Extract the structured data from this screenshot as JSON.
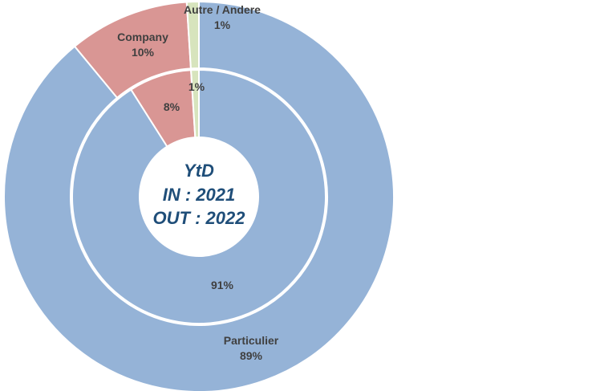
{
  "chart_data": {
    "type": "donut",
    "center_text": [
      "YtD",
      "IN : 2021",
      "OUT : 2022"
    ],
    "categories": [
      "Particulier",
      "Company",
      "Autre / Andere"
    ],
    "colors": {
      "Particulier": "#95b3d7",
      "Company": "#d99694",
      "Autre / Andere": "#d7e4bd"
    },
    "series": [
      {
        "ring": "outer",
        "values": [
          89,
          10,
          1
        ],
        "labels": [
          "89%",
          "10%",
          "1%"
        ]
      },
      {
        "ring": "inner",
        "values": [
          91,
          8,
          1
        ],
        "labels": [
          "91%",
          "8%",
          "1%"
        ]
      }
    ],
    "legend": "none"
  }
}
